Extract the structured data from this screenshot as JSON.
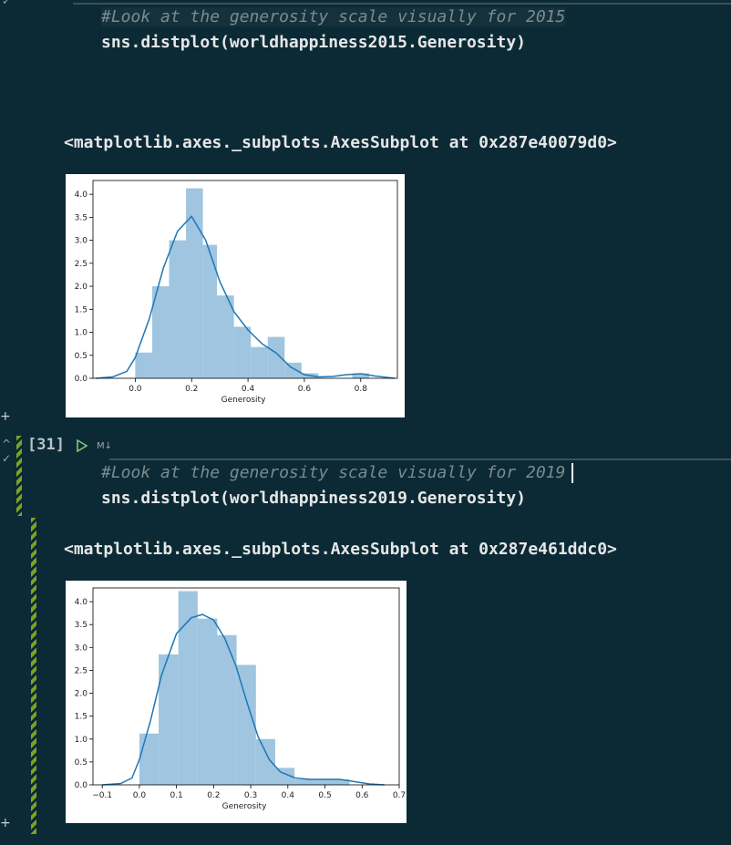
{
  "cell1": {
    "comment": "#Look at the generosity scale visually for 2015",
    "code": "sns.distplot(worldhappiness2015.Generosity)",
    "output": "<matplotlib.axes._subplots.AxesSubplot at 0x287e40079d0>"
  },
  "cell2": {
    "exec_count": "[31]",
    "badge": "M↓",
    "comment": "#Look at the generosity scale visually for 2019",
    "code": "sns.distplot(worldhappiness2019.Generosity)",
    "output": "<matplotlib.axes._subplots.AxesSubplot at 0x287e461ddc0>"
  },
  "colors": {
    "background": "#0b2a35",
    "bar": "#9fc5e0",
    "kde": "#1f77b4",
    "stripe": "#7aa326"
  },
  "icons": [
    "run-icon",
    "collapse-icon",
    "add-cell-icon"
  ],
  "chart_data": [
    {
      "type": "bar",
      "title": "",
      "xlabel": "Generosity",
      "ylabel": "",
      "xlim": [
        -0.15,
        0.93
      ],
      "ylim": [
        0,
        4.3
      ],
      "xticks": [
        0.0,
        0.2,
        0.4,
        0.6,
        0.8
      ],
      "yticks": [
        0.0,
        0.5,
        1.0,
        1.5,
        2.0,
        2.5,
        3.0,
        3.5,
        4.0
      ],
      "bins": [
        {
          "x0": 0.0,
          "x1": 0.06,
          "value": 0.56
        },
        {
          "x0": 0.06,
          "x1": 0.12,
          "value": 2.0
        },
        {
          "x0": 0.12,
          "x1": 0.18,
          "value": 3.0
        },
        {
          "x0": 0.18,
          "x1": 0.24,
          "value": 4.13
        },
        {
          "x0": 0.24,
          "x1": 0.29,
          "value": 2.9
        },
        {
          "x0": 0.29,
          "x1": 0.35,
          "value": 1.8
        },
        {
          "x0": 0.35,
          "x1": 0.41,
          "value": 1.12
        },
        {
          "x0": 0.41,
          "x1": 0.47,
          "value": 0.68
        },
        {
          "x0": 0.47,
          "x1": 0.53,
          "value": 0.9
        },
        {
          "x0": 0.53,
          "x1": 0.59,
          "value": 0.34
        },
        {
          "x0": 0.59,
          "x1": 0.65,
          "value": 0.11
        },
        {
          "x0": 0.65,
          "x1": 0.71,
          "value": 0.0
        },
        {
          "x0": 0.71,
          "x1": 0.77,
          "value": 0.0
        },
        {
          "x0": 0.77,
          "x1": 0.83,
          "value": 0.11
        }
      ],
      "kde": {
        "x": [
          -0.14,
          -0.08,
          -0.03,
          0.0,
          0.05,
          0.1,
          0.15,
          0.2,
          0.25,
          0.3,
          0.35,
          0.4,
          0.45,
          0.5,
          0.55,
          0.6,
          0.65,
          0.7,
          0.75,
          0.8,
          0.85,
          0.92
        ],
        "y": [
          0.0,
          0.03,
          0.15,
          0.45,
          1.3,
          2.4,
          3.2,
          3.52,
          3.0,
          2.1,
          1.45,
          1.05,
          0.75,
          0.55,
          0.25,
          0.08,
          0.03,
          0.04,
          0.08,
          0.1,
          0.05,
          0.0
        ]
      }
    },
    {
      "type": "bar",
      "title": "",
      "xlabel": "Generosity",
      "ylabel": "",
      "xlim": [
        -0.125,
        0.7
      ],
      "ylim": [
        0,
        4.3
      ],
      "xticks": [
        -0.1,
        0.0,
        0.1,
        0.2,
        0.3,
        0.4,
        0.5,
        0.6,
        0.7
      ],
      "yticks": [
        0.0,
        0.5,
        1.0,
        1.5,
        2.0,
        2.5,
        3.0,
        3.5,
        4.0
      ],
      "bins": [
        {
          "x0": 0.0,
          "x1": 0.052,
          "value": 1.12
        },
        {
          "x0": 0.052,
          "x1": 0.105,
          "value": 2.85
        },
        {
          "x0": 0.105,
          "x1": 0.157,
          "value": 4.23
        },
        {
          "x0": 0.157,
          "x1": 0.21,
          "value": 3.63
        },
        {
          "x0": 0.21,
          "x1": 0.262,
          "value": 3.27
        },
        {
          "x0": 0.262,
          "x1": 0.314,
          "value": 2.62
        },
        {
          "x0": 0.314,
          "x1": 0.366,
          "value": 1.0
        },
        {
          "x0": 0.366,
          "x1": 0.418,
          "value": 0.37
        },
        {
          "x0": 0.418,
          "x1": 0.47,
          "value": 0.12
        },
        {
          "x0": 0.47,
          "x1": 0.522,
          "value": 0.12
        },
        {
          "x0": 0.522,
          "x1": 0.566,
          "value": 0.12
        }
      ],
      "kde": {
        "x": [
          -0.1,
          -0.05,
          -0.02,
          0.0,
          0.03,
          0.06,
          0.1,
          0.14,
          0.17,
          0.2,
          0.23,
          0.26,
          0.29,
          0.32,
          0.35,
          0.38,
          0.42,
          0.46,
          0.5,
          0.54,
          0.58,
          0.62,
          0.66
        ],
        "y": [
          0.0,
          0.03,
          0.15,
          0.55,
          1.4,
          2.4,
          3.3,
          3.65,
          3.72,
          3.6,
          3.2,
          2.6,
          1.8,
          1.05,
          0.55,
          0.28,
          0.15,
          0.12,
          0.12,
          0.12,
          0.07,
          0.02,
          0.0
        ]
      }
    }
  ]
}
